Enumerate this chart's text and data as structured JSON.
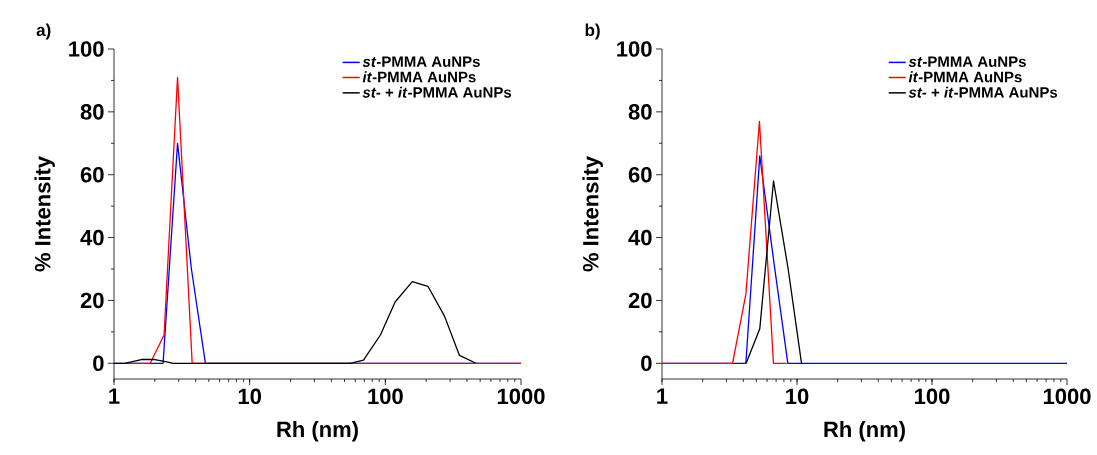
{
  "chart_data": [
    {
      "type": "line",
      "title": "a)",
      "xlabel": "Rh (nm)",
      "ylabel": "% Intensity",
      "log": "x",
      "xlim": [
        1,
        1000
      ],
      "xticks": [
        1,
        10,
        100,
        1000
      ],
      "ylim": [
        -5,
        100
      ],
      "yticks": [
        0,
        20,
        40,
        60,
        80,
        100
      ],
      "legend": "top right",
      "series": [
        {
          "name": "*st*-PMMA AuNPs",
          "color": "#0000ff",
          "x": [
            1,
            2.3,
            2.94,
            3.72,
            4.72,
            1000
          ],
          "values": [
            0,
            0,
            70,
            30,
            0,
            0
          ]
        },
        {
          "name": "*it*-PMMA AuNPs",
          "color": "#ff0000",
          "x": [
            1.23,
            1.85,
            2.34,
            2.94,
            3.77,
            1000
          ],
          "values": [
            0,
            0,
            9,
            91,
            0,
            0
          ]
        },
        {
          "name": "*st-* + *it*-PMMA AuNPs",
          "color": "#000000",
          "x": [
            1,
            1.2,
            1.59,
            2.0,
            2.4,
            2.73,
            55,
            69,
            92,
            118,
            158,
            206,
            273,
            352,
            466
          ],
          "values": [
            0,
            0,
            1.2,
            1.2,
            0.5,
            0,
            0,
            1,
            9,
            19.5,
            26,
            24.5,
            15,
            2.5,
            0
          ]
        }
      ]
    },
    {
      "type": "line",
      "title": "b)",
      "xlabel": "Rh (nm)",
      "ylabel": "% Intensity",
      "log": "x",
      "xlim": [
        1,
        1000
      ],
      "xticks": [
        1,
        10,
        100,
        1000
      ],
      "ylim": [
        -5,
        100
      ],
      "yticks": [
        0,
        20,
        40,
        60,
        80,
        100
      ],
      "legend": "top right",
      "series": [
        {
          "name": "*st*-PMMA AuNPs",
          "color": "#0000ff",
          "x": [
            1,
            4.18,
            5.3,
            6.7,
            8.55,
            1000
          ],
          "values": [
            0,
            0,
            66,
            33,
            0,
            0
          ]
        },
        {
          "name": "*it*-PMMA AuNPs",
          "color": "#ff0000",
          "x": [
            1,
            3.33,
            4.18,
            5.27,
            6.69,
            8.4
          ],
          "values": [
            0,
            0,
            22,
            77,
            0,
            0
          ]
        },
        {
          "name": "*st-* + *it*-PMMA AuNPs",
          "color": "#000000",
          "x": [
            4.2,
            5.3,
            6.7,
            8.6,
            10.8
          ],
          "values": [
            0,
            11,
            58,
            30,
            0
          ]
        }
      ]
    }
  ]
}
